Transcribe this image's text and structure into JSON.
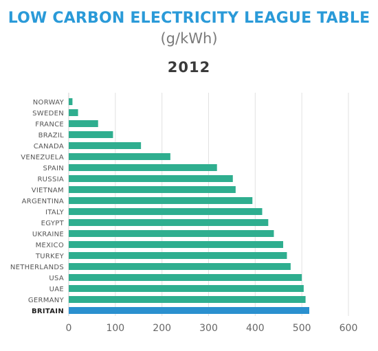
{
  "header": {
    "title": "LOW CARBON ELECTRICITY LEAGUE TABLE",
    "subtitle": "(g/kWh)",
    "year": "2012"
  },
  "colors": {
    "bar": "#2fae8f",
    "highlight": "#2a90cf",
    "title": "#2a9ad8",
    "grid": "#e1e1e1"
  },
  "chart_data": {
    "type": "bar",
    "orientation": "horizontal",
    "title": "LOW CARBON ELECTRICITY LEAGUE TABLE",
    "subtitle": "(g/kWh)",
    "year": "2012",
    "categories": [
      "NORWAY",
      "SWEDEN",
      "FRANCE",
      "BRAZIL",
      "CANADA",
      "VENEZUELA",
      "SPAIN",
      "RUSSIA",
      "VIETNAM",
      "ARGENTINA",
      "ITALY",
      "EGYPT",
      "UKRAINE",
      "MEXICO",
      "TURKEY",
      "NETHERLANDS",
      "USA",
      "UAE",
      "GERMANY",
      "BRITAIN"
    ],
    "values": [
      8,
      20,
      63,
      95,
      155,
      218,
      318,
      352,
      358,
      394,
      415,
      428,
      440,
      460,
      468,
      476,
      500,
      504,
      508,
      516
    ],
    "highlight": "BRITAIN",
    "xlim": [
      0,
      600
    ],
    "xticks": [
      0,
      100,
      200,
      300,
      400,
      500,
      600
    ],
    "grid": true
  }
}
